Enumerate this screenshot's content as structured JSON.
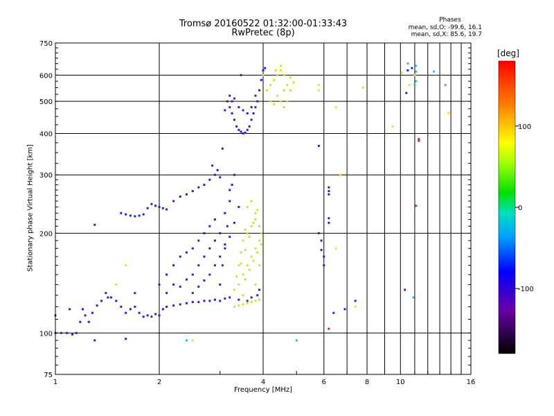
{
  "header": {
    "title_line1": "Tromsø 20160522 01:32:00-01:33:43",
    "title_line2": "RwPretec (8p)",
    "stats_title": "Phases",
    "stats_o": "mean, sd,O: -99.6, 16.1",
    "stats_x": "mean, sd,X:  85.6, 19.7"
  },
  "colorbar": {
    "title": "[deg]",
    "ticks": [
      "100",
      "0",
      "-100"
    ],
    "tick_values": [
      100,
      0,
      -100
    ],
    "range": [
      -180,
      180
    ]
  },
  "chart_data": {
    "type": "scatter",
    "title": "Tromsø 20160522 01:32:00-01:33:43",
    "subtitle": "RwPretec (8p)",
    "xlabel": "Frequency [MHz]",
    "ylabel": "Stationary phase Virtual Height [km]",
    "x_scale": "log",
    "y_scale": "log",
    "xlim": [
      1,
      16
    ],
    "ylim": [
      75,
      750
    ],
    "x_ticks": [
      1,
      2,
      4,
      6,
      8,
      10,
      16
    ],
    "x_tick_labels": [
      "1",
      "2",
      "4",
      "6",
      "8",
      "10",
      "16"
    ],
    "y_ticks": [
      75,
      100,
      200,
      300,
      400,
      500,
      600,
      750
    ],
    "y_tick_labels": [
      "75",
      "100",
      "200",
      "300",
      "400",
      "500",
      "600",
      "750"
    ],
    "grid": true,
    "color_by": "phase",
    "series": [
      {
        "points": [
          [
            1.0,
            100
          ],
          [
            1.04,
            100
          ],
          [
            1.08,
            100
          ],
          [
            1.12,
            99
          ],
          [
            1.15,
            100
          ],
          [
            1.18,
            108
          ],
          [
            1.22,
            113
          ],
          [
            1.25,
            108
          ],
          [
            1.28,
            115
          ],
          [
            1.32,
            121
          ],
          [
            1.36,
            125
          ],
          [
            1.42,
            128
          ],
          [
            1.5,
            125
          ],
          [
            1.55,
            120
          ],
          [
            1.6,
            115
          ],
          [
            1.65,
            118
          ],
          [
            1.7,
            120
          ],
          [
            1.75,
            115
          ],
          [
            1.8,
            112
          ],
          [
            1.85,
            113
          ],
          [
            1.9,
            112
          ],
          [
            1.95,
            114
          ],
          [
            2.0,
            113
          ],
          [
            2.05,
            118
          ],
          [
            2.1,
            120
          ],
          [
            2.2,
            121
          ],
          [
            2.3,
            122
          ],
          [
            2.4,
            123
          ],
          [
            2.5,
            124
          ],
          [
            2.6,
            124
          ],
          [
            2.7,
            125
          ],
          [
            2.8,
            125
          ],
          [
            2.9,
            126
          ],
          [
            3.0,
            125
          ],
          [
            3.1,
            127
          ],
          [
            3.2,
            128
          ],
          [
            1.3,
            212
          ],
          [
            1.55,
            230
          ],
          [
            1.6,
            228
          ],
          [
            1.65,
            226
          ],
          [
            1.7,
            225
          ],
          [
            1.75,
            226
          ],
          [
            1.8,
            228
          ],
          [
            1.85,
            238
          ],
          [
            1.9,
            245
          ],
          [
            1.95,
            242
          ],
          [
            2.0,
            240
          ],
          [
            2.05,
            238
          ],
          [
            2.1,
            236
          ],
          [
            2.2,
            250
          ],
          [
            2.3,
            258
          ],
          [
            2.4,
            262
          ],
          [
            2.5,
            268
          ],
          [
            2.6,
            275
          ],
          [
            2.7,
            280
          ],
          [
            2.8,
            290
          ],
          [
            2.9,
            300
          ],
          [
            2.0,
            140
          ],
          [
            2.1,
            150
          ],
          [
            2.2,
            160
          ],
          [
            2.3,
            170
          ],
          [
            2.4,
            175
          ],
          [
            2.5,
            180
          ],
          [
            2.6,
            190
          ],
          [
            2.7,
            200
          ],
          [
            2.8,
            210
          ],
          [
            2.9,
            220
          ],
          [
            2.3,
            138
          ],
          [
            2.4,
            145
          ],
          [
            2.5,
            150
          ],
          [
            2.6,
            160
          ],
          [
            2.7,
            170
          ],
          [
            2.8,
            180
          ],
          [
            2.9,
            190
          ],
          [
            3.0,
            200
          ],
          [
            3.1,
            230
          ],
          [
            3.2,
            270
          ],
          [
            2.5,
            132
          ],
          [
            2.6,
            138
          ],
          [
            2.7,
            144
          ],
          [
            2.8,
            150
          ],
          [
            2.9,
            160
          ],
          [
            3.0,
            170
          ],
          [
            3.1,
            180
          ],
          [
            3.2,
            195
          ],
          [
            3.3,
            215
          ],
          [
            3.4,
            240
          ],
          [
            3.0,
            140
          ],
          [
            3.05,
            160
          ],
          [
            3.1,
            185
          ],
          [
            3.15,
            210
          ],
          [
            3.2,
            250
          ],
          [
            3.25,
            280
          ],
          [
            3.3,
            300
          ],
          [
            2.95,
            310
          ],
          [
            3.0,
            295
          ],
          [
            2.85,
            320
          ],
          [
            3.05,
            360
          ],
          [
            3.15,
            500
          ],
          [
            3.2,
            480
          ],
          [
            3.25,
            460
          ],
          [
            3.3,
            440
          ],
          [
            3.35,
            420
          ],
          [
            3.4,
            410
          ],
          [
            3.45,
            405
          ],
          [
            3.5,
            400
          ],
          [
            3.55,
            402
          ],
          [
            3.6,
            410
          ],
          [
            3.65,
            420
          ],
          [
            3.7,
            440
          ],
          [
            3.75,
            460
          ],
          [
            3.8,
            480
          ],
          [
            3.85,
            500
          ],
          [
            3.9,
            540
          ],
          [
            3.95,
            580
          ],
          [
            4.0,
            620
          ],
          [
            4.05,
            630
          ],
          [
            3.2,
            520
          ],
          [
            3.25,
            500
          ],
          [
            3.3,
            510
          ],
          [
            3.4,
            480
          ],
          [
            3.5,
            470
          ],
          [
            3.6,
            460
          ],
          [
            3.7,
            480
          ],
          [
            3.8,
            520
          ],
          [
            3.1,
            470
          ],
          [
            3.45,
            600
          ],
          [
            1.1,
            118
          ],
          [
            1.2,
            118
          ],
          [
            1.4,
            132
          ],
          [
            1.45,
            128
          ],
          [
            1.7,
            132
          ],
          [
            1.3,
            95
          ],
          [
            1.6,
            96
          ],
          [
            1.0,
            113
          ],
          [
            2.1,
            132
          ],
          [
            2.2,
            140
          ],
          [
            3.6,
            125
          ],
          [
            3.4,
            126
          ],
          [
            3.7,
            128
          ],
          [
            3.85,
            130
          ],
          [
            3.9,
            135
          ],
          [
            6.2,
            275
          ],
          [
            6.2,
            268
          ],
          [
            6.2,
            262
          ],
          [
            6.2,
            222
          ],
          [
            6.2,
            215
          ],
          [
            5.8,
            200
          ],
          [
            5.9,
            190
          ],
          [
            5.9,
            178
          ],
          [
            6.0,
            170
          ],
          [
            6.0,
            160
          ],
          [
            5.8,
            367
          ],
          [
            10.5,
            620
          ],
          [
            10.8,
            630
          ],
          [
            10.4,
            530
          ],
          [
            10.3,
            135
          ],
          [
            7.4,
            125
          ],
          [
            6.9,
            118
          ],
          [
            6.4,
            115
          ]
        ]
      },
      {
        "points": [
          [
            3.3,
            120
          ],
          [
            3.4,
            121
          ],
          [
            3.5,
            122
          ],
          [
            3.6,
            123
          ],
          [
            3.7,
            124
          ],
          [
            3.8,
            125
          ],
          [
            3.9,
            126
          ],
          [
            3.4,
            140
          ],
          [
            3.5,
            150
          ],
          [
            3.6,
            160
          ],
          [
            3.7,
            170
          ],
          [
            3.8,
            180
          ],
          [
            3.9,
            190
          ],
          [
            3.6,
            200
          ],
          [
            3.7,
            210
          ],
          [
            3.8,
            220
          ],
          [
            3.6,
            240
          ],
          [
            3.7,
            250
          ],
          [
            3.8,
            230
          ],
          [
            3.9,
            210
          ],
          [
            3.5,
            130
          ],
          [
            3.55,
            145
          ],
          [
            3.65,
            155
          ],
          [
            3.75,
            165
          ],
          [
            3.85,
            175
          ],
          [
            3.95,
            185
          ],
          [
            3.4,
            160
          ],
          [
            3.45,
            175
          ],
          [
            3.5,
            190
          ],
          [
            3.55,
            205
          ],
          [
            3.3,
            135
          ],
          [
            3.35,
            148
          ],
          [
            3.45,
            162
          ],
          [
            3.55,
            178
          ],
          [
            3.65,
            195
          ],
          [
            3.75,
            215
          ],
          [
            3.85,
            235
          ],
          [
            3.95,
            200
          ],
          [
            3.9,
            160
          ],
          [
            3.8,
            140
          ],
          [
            4.2,
            560
          ],
          [
            4.3,
            580
          ],
          [
            4.4,
            600
          ],
          [
            4.5,
            620
          ],
          [
            4.6,
            600
          ],
          [
            4.4,
            520
          ],
          [
            4.5,
            500
          ],
          [
            4.6,
            540
          ],
          [
            4.7,
            560
          ],
          [
            4.8,
            590
          ],
          [
            4.1,
            540
          ],
          [
            4.2,
            500
          ],
          [
            4.3,
            490
          ],
          [
            4.35,
            620
          ],
          [
            4.5,
            640
          ],
          [
            4.0,
            600
          ],
          [
            4.6,
            480
          ],
          [
            4.7,
            500
          ],
          [
            4.8,
            540
          ],
          [
            4.9,
            570
          ]
        ]
      },
      {
        "points": [
          [
            5.8,
            560
          ],
          [
            5.8,
            540
          ],
          [
            6.5,
            480
          ],
          [
            6.7,
            300
          ],
          [
            6.5,
            180
          ],
          [
            7.4,
            120
          ],
          [
            7.8,
            550
          ],
          [
            9.5,
            420
          ],
          [
            11.0,
            600
          ],
          [
            10.6,
            560
          ],
          [
            13.8,
            460
          ],
          [
            10.1,
            610
          ],
          [
            2.5,
            95
          ],
          [
            1.6,
            160
          ],
          [
            1.5,
            140
          ]
        ]
      },
      {
        "points": [
          [
            11.3,
            385
          ],
          [
            11.3,
            380
          ],
          [
            11.1,
            242
          ],
          [
            6.2,
            103
          ]
        ]
      },
      {
        "points": [
          [
            10.5,
            650
          ],
          [
            11.1,
            640
          ],
          [
            11.1,
            615
          ],
          [
            11.1,
            575
          ],
          [
            12.5,
            615
          ],
          [
            13.5,
            560
          ],
          [
            5.0,
            95
          ],
          [
            2.4,
            95
          ],
          [
            10.9,
            128
          ],
          [
            11.0,
            560
          ]
        ]
      }
    ]
  }
}
